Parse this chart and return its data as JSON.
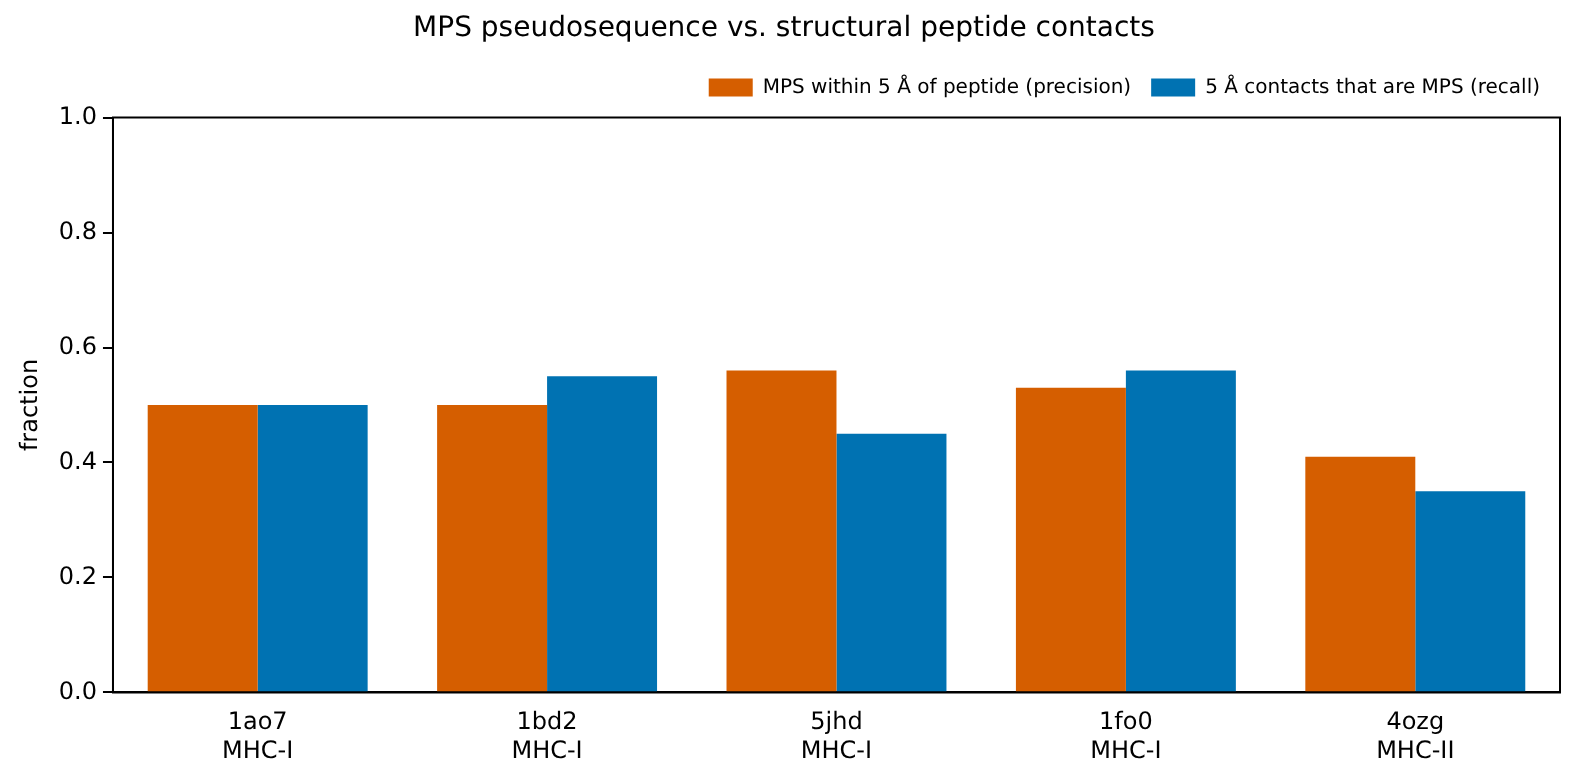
{
  "chart_data": {
    "type": "bar",
    "title": "MPS pseudosequence vs. structural peptide contacts",
    "ylabel": "fraction",
    "categories": [
      "1ao7\nMHC-I",
      "1bd2\nMHC-I",
      "5jhd\nMHC-I",
      "1fo0\nMHC-I",
      "4ozg\nMHC-II"
    ],
    "series": [
      {
        "name": "MPS within 5 Å of peptide (precision)",
        "color": "#d55e00",
        "values": [
          0.5,
          0.5,
          0.56,
          0.53,
          0.41
        ]
      },
      {
        "name": "5 Å contacts that are MPS (recall)",
        "color": "#0072b2",
        "values": [
          0.5,
          0.55,
          0.45,
          0.56,
          0.35
        ]
      }
    ],
    "ylim": [
      0,
      1
    ],
    "yticks": [
      {
        "value": 0,
        "label": "0.0"
      },
      {
        "value": 0.2,
        "label": "0.2"
      },
      {
        "value": 0.4,
        "label": "0.4"
      },
      {
        "value": 0.6,
        "label": "0.6"
      },
      {
        "value": 0.8,
        "label": "0.8"
      },
      {
        "value": 1,
        "label": "1.0"
      }
    ],
    "grid": false,
    "legend": "top right"
  }
}
